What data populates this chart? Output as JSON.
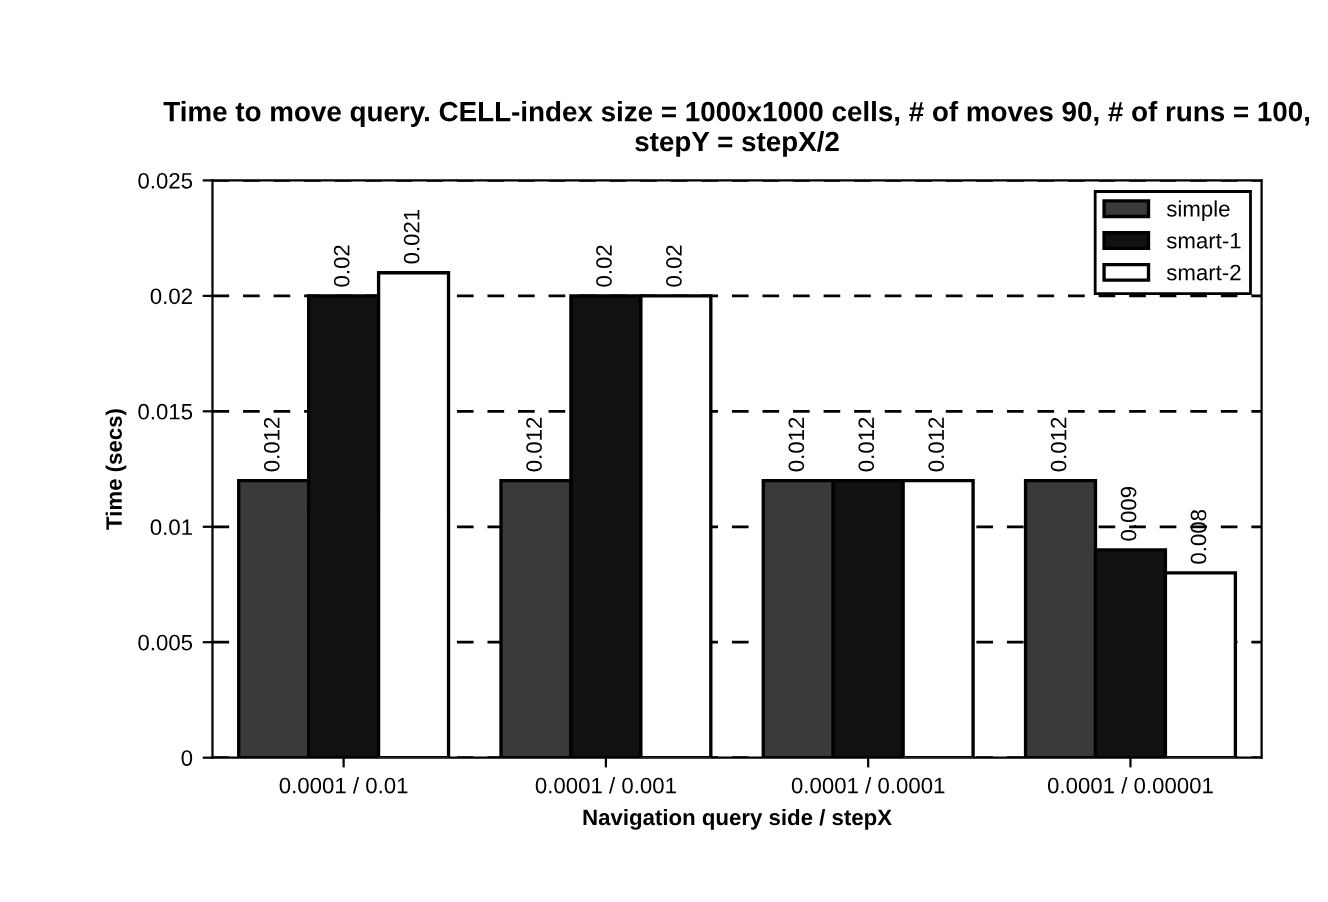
{
  "chart_data": {
    "type": "bar",
    "title": "Time to move query. CELL-index size = 1000x1000 cells, # of moves 90, # of runs = 100, stepY = stepX/2",
    "xlabel": "Navigation query side / stepX",
    "ylabel": "Time (secs)",
    "categories": [
      "0.0001 / 0.01",
      "0.0001 / 0.001",
      "0.0001 / 0.0001",
      "0.0001 / 0.00001"
    ],
    "series": [
      {
        "name": "simple",
        "color": "#3a3a3a",
        "values": [
          0.012,
          0.012,
          0.012,
          0.012
        ]
      },
      {
        "name": "smart-1",
        "color": "#111111",
        "values": [
          0.02,
          0.02,
          0.012,
          0.009
        ]
      },
      {
        "name": "smart-2",
        "color": "#ffffff",
        "values": [
          0.021,
          0.02,
          0.012,
          0.008
        ]
      }
    ],
    "ylim": [
      0,
      0.025
    ],
    "yticks": [
      0,
      0.005,
      0.01,
      0.015,
      0.02,
      0.025
    ],
    "grid": "y",
    "legend": "top right",
    "data_labels": true
  }
}
